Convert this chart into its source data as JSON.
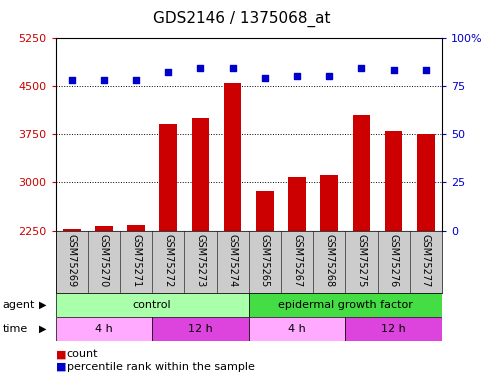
{
  "title": "GDS2146 / 1375068_at",
  "samples": [
    "GSM75269",
    "GSM75270",
    "GSM75271",
    "GSM75272",
    "GSM75273",
    "GSM75274",
    "GSM75265",
    "GSM75267",
    "GSM75268",
    "GSM75275",
    "GSM75276",
    "GSM75277"
  ],
  "bar_values": [
    2270,
    2320,
    2330,
    3900,
    4000,
    4550,
    2870,
    3080,
    3110,
    4050,
    3800,
    3750
  ],
  "pct_values": [
    78,
    78,
    78,
    82,
    84,
    84,
    79,
    80,
    80,
    84,
    83,
    83
  ],
  "bar_color": "#cc0000",
  "pct_color": "#0000cc",
  "ylim_left": [
    2250,
    5250
  ],
  "ylim_right": [
    0,
    100
  ],
  "yticks_left": [
    2250,
    3000,
    3750,
    4500,
    5250
  ],
  "yticks_right": [
    0,
    25,
    50,
    75,
    100
  ],
  "grid_lines": [
    3000,
    3750,
    4500
  ],
  "agent_groups": [
    {
      "label": "control",
      "start": 0,
      "end": 6,
      "color": "#aaffaa"
    },
    {
      "label": "epidermal growth factor",
      "start": 6,
      "end": 12,
      "color": "#44dd44"
    }
  ],
  "time_groups": [
    {
      "label": "4 h",
      "start": 0,
      "end": 3,
      "color": "#ffaaff"
    },
    {
      "label": "12 h",
      "start": 3,
      "end": 6,
      "color": "#dd44dd"
    },
    {
      "label": "4 h",
      "start": 6,
      "end": 9,
      "color": "#ffaaff"
    },
    {
      "label": "12 h",
      "start": 9,
      "end": 12,
      "color": "#dd44dd"
    }
  ],
  "legend_count_color": "#cc0000",
  "legend_pct_color": "#0000cc",
  "bg_color": "#ffffff",
  "sample_bg_color": "#cccccc",
  "plot_bg_color": "#ffffff",
  "title_fontsize": 11,
  "tick_fontsize": 8,
  "label_fontsize": 8,
  "sample_fontsize": 7,
  "bar_bottom": 2250
}
